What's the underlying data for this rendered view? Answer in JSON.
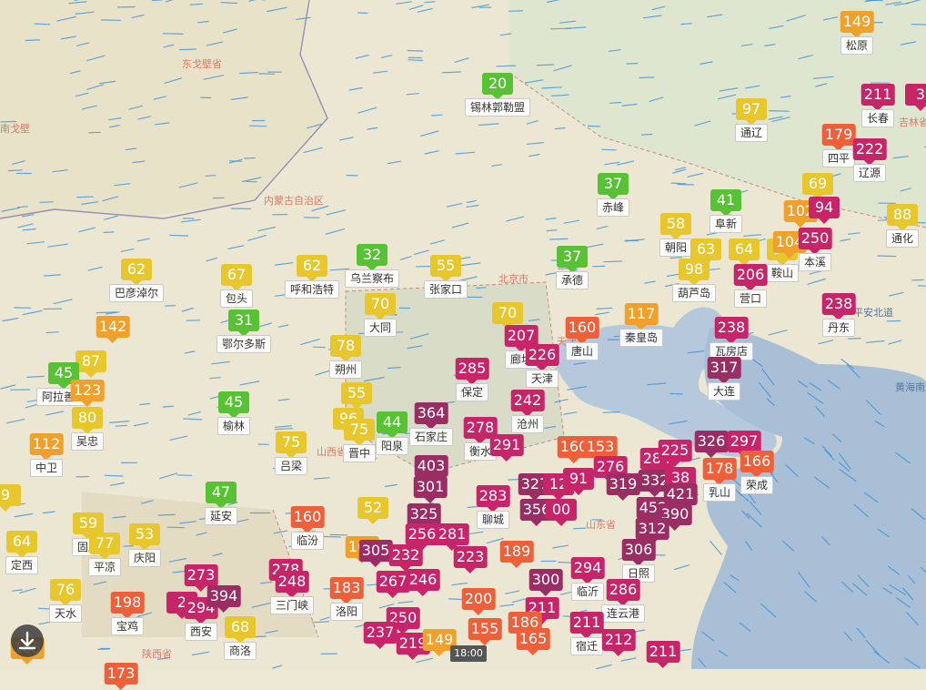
{
  "time_label": "18:00",
  "colors": {
    "good": "#57c234",
    "moderate": "#e8c72c",
    "usg": "#f0a12b",
    "unhealthy": "#ef5f3a",
    "very_unhealthy": "#c8246a",
    "hazardous": "#9a2d63"
  },
  "regions": [
    {
      "id": "gobi",
      "text": "东戈壁省"
    },
    {
      "id": "innermongolia",
      "text": "内蒙古自治区"
    },
    {
      "id": "shanxi",
      "text": "山西省"
    },
    {
      "id": "shaanxi",
      "text": "陕西省"
    },
    {
      "id": "hebei",
      "text": "河北省"
    },
    {
      "id": "shandong",
      "text": "山东省"
    },
    {
      "id": "beijing",
      "text": "北京市"
    },
    {
      "id": "tianjin",
      "text": "天津市"
    },
    {
      "id": "pingan",
      "text": "平安北道"
    },
    {
      "id": "huanghai",
      "text": "黄海南道"
    },
    {
      "id": "south_gobi",
      "text": "南戈壁"
    },
    {
      "id": "jilin",
      "text": "吉林省"
    }
  ],
  "markers": [
    {
      "v": "149",
      "city": "松原",
      "l": "usg"
    },
    {
      "v": "211",
      "city": "长春",
      "l": "very_unhealthy"
    },
    {
      "v": "3",
      "city": "",
      "l": "very_unhealthy"
    },
    {
      "v": "20",
      "city": "锡林郭勒盟",
      "l": "good"
    },
    {
      "v": "97",
      "city": "通辽",
      "l": "moderate"
    },
    {
      "v": "179",
      "city": "四平",
      "l": "unhealthy"
    },
    {
      "v": "222",
      "city": "辽源",
      "l": "very_unhealthy"
    },
    {
      "v": "37",
      "city": "赤峰",
      "l": "good"
    },
    {
      "v": "41",
      "city": "阜新",
      "l": "good"
    },
    {
      "v": "69",
      "city": "",
      "l": "moderate"
    },
    {
      "v": "102",
      "city": "",
      "l": "usg"
    },
    {
      "v": "94",
      "city": "",
      "l": "very_unhealthy"
    },
    {
      "v": "88",
      "city": "通化",
      "l": "moderate"
    },
    {
      "v": "58",
      "city": "朝阳",
      "l": "moderate"
    },
    {
      "v": "63",
      "city": "",
      "l": "moderate"
    },
    {
      "v": "64",
      "city": "",
      "l": "moderate"
    },
    {
      "v": "95",
      "city": "鞍山",
      "l": "moderate"
    },
    {
      "v": "104",
      "city": "",
      "l": "usg"
    },
    {
      "v": "250",
      "city": "本溪",
      "l": "very_unhealthy"
    },
    {
      "v": "62",
      "city": "巴彦淖尔",
      "l": "moderate"
    },
    {
      "v": "67",
      "city": "包头",
      "l": "moderate"
    },
    {
      "v": "62",
      "city": "呼和浩特",
      "l": "moderate"
    },
    {
      "v": "32",
      "city": "乌兰察布",
      "l": "good"
    },
    {
      "v": "55",
      "city": "张家口",
      "l": "moderate"
    },
    {
      "v": "37",
      "city": "承德",
      "l": "good"
    },
    {
      "v": "98",
      "city": "葫芦岛",
      "l": "moderate"
    },
    {
      "v": "206",
      "city": "营口",
      "l": "very_unhealthy"
    },
    {
      "v": "238",
      "city": "丹东",
      "l": "very_unhealthy"
    },
    {
      "v": "142",
      "city": "",
      "l": "usg"
    },
    {
      "v": "31",
      "city": "鄂尔多斯",
      "l": "good"
    },
    {
      "v": "70",
      "city": "大同",
      "l": "moderate"
    },
    {
      "v": "70",
      "city": "",
      "l": "moderate"
    },
    {
      "v": "207",
      "city": "廊坊",
      "l": "very_unhealthy"
    },
    {
      "v": "160",
      "city": "唐山",
      "l": "unhealthy"
    },
    {
      "v": "117",
      "city": "秦皇岛",
      "l": "usg"
    },
    {
      "v": "238",
      "city": "瓦房店",
      "l": "very_unhealthy"
    },
    {
      "v": "87",
      "city": "",
      "l": "moderate"
    },
    {
      "v": "45",
      "city": "阿拉善盟",
      "l": "good"
    },
    {
      "v": "123",
      "city": "",
      "l": "usg"
    },
    {
      "v": "78",
      "city": "朔州",
      "l": "moderate"
    },
    {
      "v": "226",
      "city": "天津",
      "l": "very_unhealthy"
    },
    {
      "v": "285",
      "city": "保定",
      "l": "very_unhealthy"
    },
    {
      "v": "317",
      "city": "大连",
      "l": "hazardous"
    },
    {
      "v": "80",
      "city": "吴忠",
      "l": "moderate"
    },
    {
      "v": "45",
      "city": "榆林",
      "l": "good"
    },
    {
      "v": "55",
      "city": "",
      "l": "moderate"
    },
    {
      "v": "242",
      "city": "沧州",
      "l": "very_unhealthy"
    },
    {
      "v": "96",
      "city": "",
      "l": "moderate"
    },
    {
      "v": "75",
      "city": "晋中",
      "l": "moderate"
    },
    {
      "v": "44",
      "city": "阳泉",
      "l": "good"
    },
    {
      "v": "364",
      "city": "石家庄",
      "l": "hazardous"
    },
    {
      "v": "112",
      "city": "中卫",
      "l": "usg"
    },
    {
      "v": "75",
      "city": "吕梁",
      "l": "moderate"
    },
    {
      "v": "278",
      "city": "衡水",
      "l": "very_unhealthy"
    },
    {
      "v": "291",
      "city": "",
      "l": "very_unhealthy"
    },
    {
      "v": "160",
      "city": "",
      "l": "unhealthy"
    },
    {
      "v": "153",
      "city": "",
      "l": "unhealthy"
    },
    {
      "v": "284",
      "city": "",
      "l": "very_unhealthy"
    },
    {
      "v": "225",
      "city": "",
      "l": "very_unhealthy"
    },
    {
      "v": "326",
      "city": "",
      "l": "hazardous"
    },
    {
      "v": "297",
      "city": "",
      "l": "very_unhealthy"
    },
    {
      "v": "403",
      "city": "",
      "l": "hazardous"
    },
    {
      "v": "276",
      "city": "",
      "l": "very_unhealthy"
    },
    {
      "v": "178",
      "city": "乳山",
      "l": "unhealthy"
    },
    {
      "v": "166",
      "city": "荣成",
      "l": "unhealthy"
    },
    {
      "v": "47",
      "city": "延安",
      "l": "good"
    },
    {
      "v": "301",
      "city": "",
      "l": "hazardous"
    },
    {
      "v": "327",
      "city": "",
      "l": "hazardous"
    },
    {
      "v": "12",
      "city": "",
      "l": "very_unhealthy"
    },
    {
      "v": "91",
      "city": "",
      "l": "very_unhealthy"
    },
    {
      "v": "319",
      "city": "",
      "l": "hazardous"
    },
    {
      "v": "332",
      "city": "",
      "l": "hazardous"
    },
    {
      "v": "38",
      "city": "",
      "l": "very_unhealthy"
    },
    {
      "v": "283",
      "city": "聊城",
      "l": "very_unhealthy"
    },
    {
      "v": "421",
      "city": "",
      "l": "hazardous"
    },
    {
      "v": "52",
      "city": "",
      "l": "moderate"
    },
    {
      "v": "356",
      "city": "",
      "l": "hazardous"
    },
    {
      "v": "00",
      "city": "",
      "l": "very_unhealthy"
    },
    {
      "v": "452",
      "city": "",
      "l": "hazardous"
    },
    {
      "v": "390",
      "city": "",
      "l": "hazardous"
    },
    {
      "v": "59",
      "city": "固原",
      "l": "moderate"
    },
    {
      "v": "160",
      "city": "临汾",
      "l": "unhealthy"
    },
    {
      "v": "325",
      "city": "",
      "l": "hazardous"
    },
    {
      "v": "312",
      "city": "",
      "l": "hazardous"
    },
    {
      "v": "64",
      "city": "定西",
      "l": "moderate"
    },
    {
      "v": "77",
      "city": "平凉",
      "l": "moderate"
    },
    {
      "v": "53",
      "city": "庆阳",
      "l": "moderate"
    },
    {
      "v": "256",
      "city": "",
      "l": "very_unhealthy"
    },
    {
      "v": "281",
      "city": "",
      "l": "very_unhealthy"
    },
    {
      "v": "108",
      "city": "",
      "l": "usg"
    },
    {
      "v": "305",
      "city": "",
      "l": "hazardous"
    },
    {
      "v": "232",
      "city": "",
      "l": "very_unhealthy"
    },
    {
      "v": "223",
      "city": "",
      "l": "very_unhealthy"
    },
    {
      "v": "189",
      "city": "",
      "l": "unhealthy"
    },
    {
      "v": "306",
      "city": "日照",
      "l": "hazardous"
    },
    {
      "v": "273",
      "city": "",
      "l": "very_unhealthy"
    },
    {
      "v": "278",
      "city": "",
      "l": "very_unhealthy"
    },
    {
      "v": "248",
      "city": "三门峡",
      "l": "very_unhealthy"
    },
    {
      "v": "183",
      "city": "洛阳",
      "l": "unhealthy"
    },
    {
      "v": "267",
      "city": "",
      "l": "very_unhealthy"
    },
    {
      "v": "246",
      "city": "",
      "l": "very_unhealthy"
    },
    {
      "v": "300",
      "city": "",
      "l": "hazardous"
    },
    {
      "v": "294",
      "city": "临沂",
      "l": "very_unhealthy"
    },
    {
      "v": "76",
      "city": "天水",
      "l": "moderate"
    },
    {
      "v": "198",
      "city": "宝鸡",
      "l": "unhealthy"
    },
    {
      "v": "2",
      "city": "",
      "l": "very_unhealthy"
    },
    {
      "v": "294",
      "city": "西安",
      "l": "very_unhealthy"
    },
    {
      "v": "394",
      "city": "",
      "l": "hazardous"
    },
    {
      "v": "68",
      "city": "商洛",
      "l": "moderate"
    },
    {
      "v": "200",
      "city": "",
      "l": "unhealthy"
    },
    {
      "v": "211",
      "city": "",
      "l": "very_unhealthy"
    },
    {
      "v": "286",
      "city": "连云港",
      "l": "very_unhealthy"
    },
    {
      "v": "250",
      "city": "",
      "l": "very_unhealthy"
    },
    {
      "v": "237",
      "city": "",
      "l": "very_unhealthy"
    },
    {
      "v": "155",
      "city": "",
      "l": "unhealthy"
    },
    {
      "v": "186",
      "city": "",
      "l": "unhealthy"
    },
    {
      "v": "211",
      "city": "宿迁",
      "l": "very_unhealthy"
    },
    {
      "v": "219",
      "city": "",
      "l": "very_unhealthy"
    },
    {
      "v": "149",
      "city": "",
      "l": "usg"
    },
    {
      "v": "165",
      "city": "",
      "l": "unhealthy"
    },
    {
      "v": "212",
      "city": "",
      "l": "very_unhealthy"
    },
    {
      "v": "211",
      "city": "",
      "l": "very_unhealthy"
    },
    {
      "v": "173",
      "city": "",
      "l": "unhealthy"
    },
    {
      "v": "9",
      "city": "",
      "l": "moderate"
    },
    {
      "v": "185",
      "city": "",
      "l": "usg"
    }
  ]
}
